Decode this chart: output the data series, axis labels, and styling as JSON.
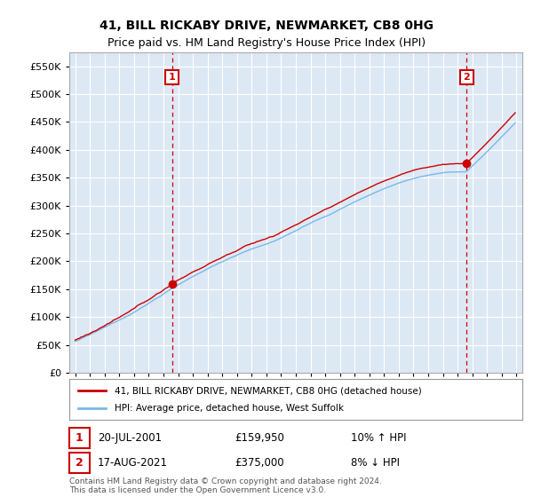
{
  "title": "41, BILL RICKABY DRIVE, NEWMARKET, CB8 0HG",
  "subtitle": "Price paid vs. HM Land Registry's House Price Index (HPI)",
  "legend_line1": "41, BILL RICKABY DRIVE, NEWMARKET, CB8 0HG (detached house)",
  "legend_line2": "HPI: Average price, detached house, West Suffolk",
  "annotation1_label": "1",
  "annotation1_date": "20-JUL-2001",
  "annotation1_price": "£159,950",
  "annotation1_hpi": "10% ↑ HPI",
  "annotation2_label": "2",
  "annotation2_date": "17-AUG-2021",
  "annotation2_price": "£375,000",
  "annotation2_hpi": "8% ↓ HPI",
  "footnote": "Contains HM Land Registry data © Crown copyright and database right 2024.\nThis data is licensed under the Open Government Licence v3.0.",
  "hpi_color": "#7ab8e8",
  "price_color": "#cc0000",
  "background_color": "#ffffff",
  "plot_bg_color": "#dde8f5",
  "grid_color": "#ffffff",
  "ylim": [
    0,
    575000
  ],
  "yticks": [
    0,
    50000,
    100000,
    150000,
    200000,
    250000,
    300000,
    350000,
    400000,
    450000,
    500000,
    550000
  ],
  "sale1_t": 2001.583,
  "sale1_price": 159950,
  "sale2_t": 2021.625,
  "sale2_price": 375000,
  "figsize": [
    6.0,
    5.6
  ],
  "dpi": 100
}
